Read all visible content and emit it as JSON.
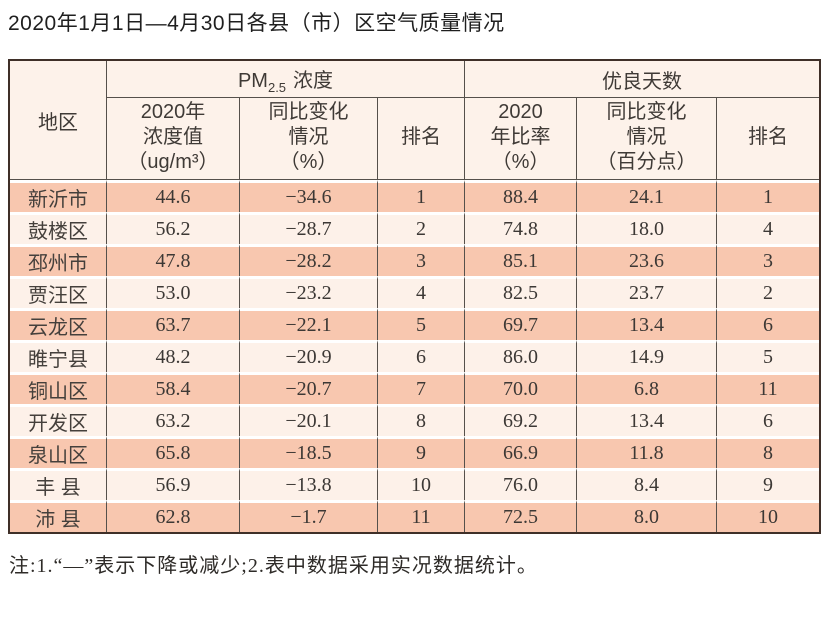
{
  "title": "2020年1月1日—4月30日各县（市）区空气质量情况",
  "footnote": "注:1.“—”表示下降或减少;2.表中数据采用实况数据统计。",
  "colors": {
    "row_odd": "#f8c7af",
    "row_even": "#fdf1e9",
    "header_bg": "#fdf2ea",
    "outer_border": "#3f2f28",
    "grid_line": "#55504b"
  },
  "table": {
    "col_region": "地区",
    "group_pm25": {
      "prefix": "PM",
      "subscript": "2.5",
      "suffix": "浓度"
    },
    "group_good_days": "优良天数",
    "subheaders": {
      "pm_value": "2020年\n浓度值\n（ug/m³）",
      "pm_change": "同比变化\n情况\n（%）",
      "pm_rank": "排名",
      "good_ratio": "2020\n年比率\n（%）",
      "good_change": "同比变化\n情况\n（百分点）",
      "good_rank": "排名"
    },
    "rows": [
      {
        "region": "新沂市",
        "pm_value": "44.6",
        "pm_change": "−34.6",
        "pm_rank": "1",
        "good_ratio": "88.4",
        "good_change": "24.1",
        "good_rank": "1"
      },
      {
        "region": "鼓楼区",
        "pm_value": "56.2",
        "pm_change": "−28.7",
        "pm_rank": "2",
        "good_ratio": "74.8",
        "good_change": "18.0",
        "good_rank": "4"
      },
      {
        "region": "邳州市",
        "pm_value": "47.8",
        "pm_change": "−28.2",
        "pm_rank": "3",
        "good_ratio": "85.1",
        "good_change": "23.6",
        "good_rank": "3"
      },
      {
        "region": "贾汪区",
        "pm_value": "53.0",
        "pm_change": "−23.2",
        "pm_rank": "4",
        "good_ratio": "82.5",
        "good_change": "23.7",
        "good_rank": "2"
      },
      {
        "region": "云龙区",
        "pm_value": "63.7",
        "pm_change": "−22.1",
        "pm_rank": "5",
        "good_ratio": "69.7",
        "good_change": "13.4",
        "good_rank": "6"
      },
      {
        "region": "睢宁县",
        "pm_value": "48.2",
        "pm_change": "−20.9",
        "pm_rank": "6",
        "good_ratio": "86.0",
        "good_change": "14.9",
        "good_rank": "5"
      },
      {
        "region": "铜山区",
        "pm_value": "58.4",
        "pm_change": "−20.7",
        "pm_rank": "7",
        "good_ratio": "70.0",
        "good_change": "6.8",
        "good_rank": "11"
      },
      {
        "region": "开发区",
        "pm_value": "63.2",
        "pm_change": "−20.1",
        "pm_rank": "8",
        "good_ratio": "69.2",
        "good_change": "13.4",
        "good_rank": "6"
      },
      {
        "region": "泉山区",
        "pm_value": "65.8",
        "pm_change": "−18.5",
        "pm_rank": "9",
        "good_ratio": "66.9",
        "good_change": "11.8",
        "good_rank": "8"
      },
      {
        "region": "丰 县",
        "pm_value": "56.9",
        "pm_change": "−13.8",
        "pm_rank": "10",
        "good_ratio": "76.0",
        "good_change": "8.4",
        "good_rank": "9"
      },
      {
        "region": "沛 县",
        "pm_value": "62.8",
        "pm_change": "−1.7",
        "pm_rank": "11",
        "good_ratio": "72.5",
        "good_change": "8.0",
        "good_rank": "10"
      }
    ]
  }
}
